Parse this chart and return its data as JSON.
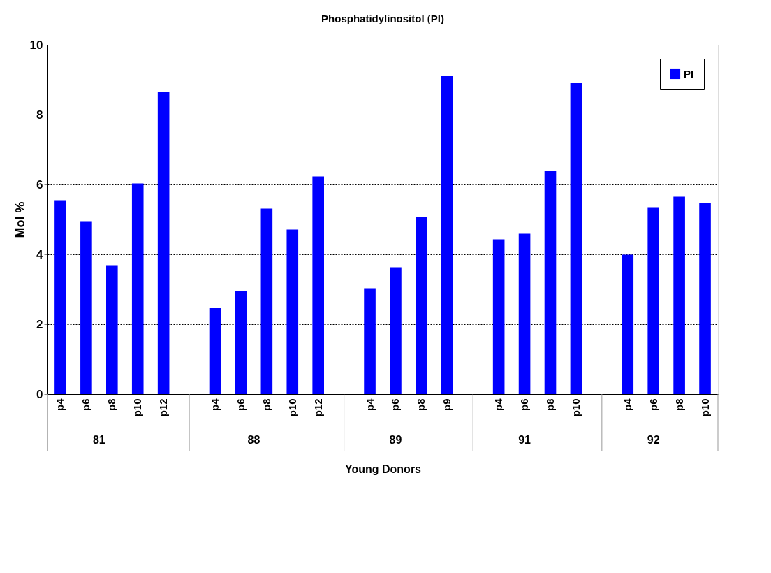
{
  "chart_data": {
    "type": "bar",
    "title": "Phosphatidylinositol (PI)",
    "xlabel": "Young Donors",
    "ylabel": "Mol %",
    "categories": [
      "p4",
      "p6",
      "p8",
      "p10",
      "p12",
      null,
      "p4",
      "p6",
      "p8",
      "p10",
      "p12",
      null,
      "p4",
      "p6",
      "p8",
      "p9",
      null,
      "p4",
      "p6",
      "p8",
      "p10",
      null,
      "p4",
      "p6",
      "p8",
      "p10"
    ],
    "series": [
      {
        "name": "PI",
        "color": "#0000ff",
        "values": [
          5.55,
          4.95,
          3.69,
          6.03,
          8.66,
          null,
          2.46,
          2.95,
          5.31,
          4.71,
          6.23,
          null,
          3.03,
          3.63,
          5.07,
          9.1,
          null,
          4.43,
          4.59,
          6.39,
          8.9,
          null,
          3.99,
          5.35,
          5.65,
          5.47
        ]
      }
    ],
    "annotations": [
      "81",
      "88",
      "89",
      "91",
      "92"
    ],
    "ylim": [
      0,
      10
    ],
    "yticks": [
      0,
      2,
      4,
      6,
      8,
      10
    ],
    "grid": "y",
    "legend": "top right"
  }
}
